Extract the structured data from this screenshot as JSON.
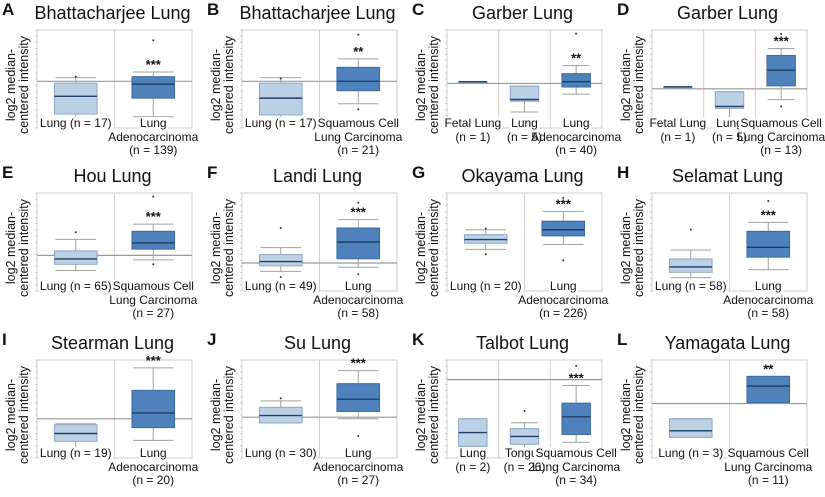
{
  "colors": {
    "normal_fill": "#bcd0e6",
    "normal_stroke": "#8aa6c4",
    "tumor_fill": "#4f81bd",
    "tumor_stroke": "#3d6a9e",
    "median": "#1f3f66",
    "whisker": "#a0a0a0",
    "zero_line": "#999999",
    "grid": "#dddddd"
  },
  "ylabel_line1": "log2 median-",
  "ylabel_line2": "centered intensity",
  "chart_data": [
    {
      "letter": "A",
      "title": "Bhattacharjee Lung",
      "type": "box",
      "ylim": [
        -5.0,
        5.5
      ],
      "groups": [
        {
          "label": [
            "Lung (n = 17)"
          ],
          "kind": "normal",
          "q1": -3.5,
          "median": -1.6,
          "q3": -0.2,
          "wlo": -4.4,
          "whi": 0.4,
          "outliers": [
            0.5,
            -4.8
          ]
        },
        {
          "label": [
            "Lung",
            "Adenocarcinoma",
            "(n = 139)"
          ],
          "kind": "tumor",
          "q1": -1.8,
          "median": -0.3,
          "q3": 0.5,
          "wlo": -3.8,
          "whi": 1.0,
          "outliers": [
            4.4,
            -4.3
          ],
          "sig": "***"
        }
      ]
    },
    {
      "letter": "B",
      "title": "Bhattacharjee Lung",
      "type": "box",
      "ylim": [
        -5.0,
        5.5
      ],
      "groups": [
        {
          "label": [
            "Lung (n = 17)"
          ],
          "kind": "normal",
          "q1": -3.6,
          "median": -1.8,
          "q3": -0.2,
          "wlo": -4.7,
          "whi": 0.4,
          "outliers": [
            0.3,
            -5.0
          ]
        },
        {
          "label": [
            "Squamous Cell",
            "Lung Carcinoma",
            "(n = 21)"
          ],
          "kind": "tumor",
          "q1": -1.0,
          "median": 0.0,
          "q3": 1.5,
          "wlo": -2.4,
          "whi": 2.4,
          "outliers": [
            5.0,
            -3.0
          ],
          "sig": "**"
        }
      ]
    },
    {
      "letter": "C",
      "title": "Garber Lung",
      "type": "box",
      "ylim": [
        -2.5,
        3.0
      ],
      "groups": [
        {
          "label": [
            "Fetal Lung",
            "(n = 1)"
          ],
          "kind": "normal",
          "q1": 0.1,
          "median": 0.1,
          "q3": 0.1,
          "wlo": 0.1,
          "whi": 0.1,
          "outliers": []
        },
        {
          "label": [
            "Lung",
            "(n = 5)"
          ],
          "kind": "normal",
          "q1": -1.0,
          "median": -0.9,
          "q3": -0.15,
          "wlo": -1.6,
          "whi": -0.15,
          "outliers": []
        },
        {
          "label": [
            "Lung",
            "Adenocarcinoma",
            "(n = 40)"
          ],
          "kind": "tumor",
          "q1": -0.2,
          "median": 0.1,
          "q3": 0.55,
          "wlo": -0.6,
          "whi": 1.0,
          "outliers": [
            2.8,
            -2.1
          ],
          "sig": "**"
        }
      ]
    },
    {
      "letter": "D",
      "title": "Garber Lung",
      "type": "box",
      "ylim": [
        -2.0,
        3.0
      ],
      "groups": [
        {
          "label": [
            "Fetal Lung",
            "(n = 1)"
          ],
          "kind": "normal",
          "q1": 0.1,
          "median": 0.1,
          "q3": 0.1,
          "wlo": 0.1,
          "whi": 0.1,
          "outliers": []
        },
        {
          "label": [
            "Lung",
            "(n = 5)"
          ],
          "kind": "normal",
          "q1": -1.0,
          "median": -0.9,
          "q3": -0.15,
          "wlo": -1.6,
          "whi": -0.15,
          "outliers": []
        },
        {
          "label": [
            "Squamous Cell",
            "Lung Carcinoma",
            "(n = 13)"
          ],
          "kind": "tumor",
          "q1": 0.15,
          "median": 0.95,
          "q3": 1.7,
          "wlo": -0.55,
          "whi": 2.05,
          "outliers": [
            2.8,
            -0.9
          ],
          "sig": "***"
        }
      ]
    },
    {
      "letter": "E",
      "title": "Hou Lung",
      "type": "box",
      "ylim": [
        -2.0,
        3.5
      ],
      "groups": [
        {
          "label": [
            "Lung (n = 65)"
          ],
          "kind": "normal",
          "q1": -0.5,
          "median": -0.2,
          "q3": 0.25,
          "wlo": -0.85,
          "whi": 0.9,
          "outliers": [
            1.3,
            -1.7
          ]
        },
        {
          "label": [
            "Squamous Cell",
            "Lung Carcinoma",
            "(n = 27)"
          ],
          "kind": "tumor",
          "q1": 0.35,
          "median": 0.7,
          "q3": 1.35,
          "wlo": -0.25,
          "whi": 1.75,
          "outliers": [
            3.3,
            -0.5
          ],
          "sig": "***"
        }
      ]
    },
    {
      "letter": "F",
      "title": "Landi Lung",
      "type": "box",
      "ylim": [
        -1.0,
        2.5
      ],
      "groups": [
        {
          "label": [
            "Lung (n = 49)"
          ],
          "kind": "normal",
          "q1": -0.1,
          "median": 0.05,
          "q3": 0.3,
          "wlo": -0.3,
          "whi": 0.55,
          "outliers": [
            1.25,
            -0.5
          ]
        },
        {
          "label": [
            "Lung",
            "Adenocarcinoma",
            "(n = 58)"
          ],
          "kind": "tumor",
          "q1": 0.15,
          "median": 0.75,
          "q3": 1.25,
          "wlo": -0.15,
          "whi": 1.55,
          "outliers": [
            2.15,
            -0.4
          ],
          "sig": "***"
        }
      ]
    },
    {
      "letter": "G",
      "title": "Okayama Lung",
      "type": "box",
      "ylim": [
        0.0,
        8.0
      ],
      "groups": [
        {
          "label": [
            "Lung (n = 20)"
          ],
          "kind": "normal",
          "q1": 3.9,
          "median": 4.2,
          "q3": 4.6,
          "wlo": 3.4,
          "whi": 5.0,
          "outliers": [
            5.1,
            3.0
          ]
        },
        {
          "label": [
            "Lung",
            "Adenocarcinoma",
            "(n = 226)"
          ],
          "kind": "tumor",
          "q1": 4.5,
          "median": 5.0,
          "q3": 5.7,
          "wlo": 3.8,
          "whi": 6.5,
          "outliers": [
            7.6,
            2.5
          ],
          "sig": "***"
        }
      ]
    },
    {
      "letter": "H",
      "title": "Selamat Lung",
      "type": "box",
      "ylim": [
        0.0,
        5.5
      ],
      "groups": [
        {
          "label": [
            "Lung (n = 58)"
          ],
          "kind": "normal",
          "q1": 1.05,
          "median": 1.35,
          "q3": 1.8,
          "wlo": 0.75,
          "whi": 2.3,
          "outliers": [
            3.45,
            0.15
          ]
        },
        {
          "label": [
            "Lung",
            "Adenocarcinoma",
            "(n = 58)"
          ],
          "kind": "tumor",
          "q1": 1.9,
          "median": 2.45,
          "q3": 3.35,
          "wlo": 1.2,
          "whi": 3.85,
          "outliers": [
            5.05,
            0.35
          ],
          "sig": "***"
        }
      ]
    },
    {
      "letter": "I",
      "title": "Stearman Lung",
      "type": "box",
      "ylim": [
        -2.0,
        3.0
      ],
      "groups": [
        {
          "label": [
            "Lung (n = 19)"
          ],
          "kind": "normal",
          "q1": -1.15,
          "median": -0.75,
          "q3": -0.3,
          "wlo": -1.6,
          "whi": -0.25,
          "outliers": [
            -1.7
          ]
        },
        {
          "label": [
            "Lung",
            "Adenocarcinoma",
            "(n = 20)"
          ],
          "kind": "tumor",
          "q1": -0.45,
          "median": 0.3,
          "q3": 1.45,
          "wlo": -1.1,
          "whi": 2.6,
          "outliers": [
            -1.5
          ],
          "sig": "***"
        }
      ]
    },
    {
      "letter": "J",
      "title": "Su Lung",
      "type": "box",
      "ylim": [
        -2.5,
        3.5
      ],
      "groups": [
        {
          "label": [
            "Lung (n = 30)"
          ],
          "kind": "normal",
          "q1": -0.35,
          "median": 0.1,
          "q3": 0.6,
          "wlo": -0.35,
          "whi": 1.0,
          "outliers": [
            1.15,
            -2.2
          ]
        },
        {
          "label": [
            "Lung",
            "Adenocarcinoma",
            "(n = 27)"
          ],
          "kind": "tumor",
          "q1": 0.35,
          "median": 1.1,
          "q3": 2.05,
          "wlo": -0.1,
          "whi": 2.85,
          "outliers": [
            -1.15
          ],
          "sig": "***"
        }
      ]
    },
    {
      "letter": "K",
      "title": "Talbot Lung",
      "type": "box",
      "ylim": [
        -2.0,
        0.5
      ],
      "groups": [
        {
          "label": [
            "Lung",
            "(n = 2)"
          ],
          "kind": "normal",
          "q1": -1.7,
          "median": -1.35,
          "q3": -1.0,
          "wlo": -1.7,
          "whi": -1.0,
          "outliers": []
        },
        {
          "label": [
            "Tongue",
            "(n = 26)"
          ],
          "kind": "normal",
          "q1": -1.65,
          "median": -1.45,
          "q3": -1.25,
          "wlo": -1.85,
          "whi": -1.1,
          "outliers": [
            -0.8,
            -1.9
          ]
        },
        {
          "label": [
            "Squamous Cell",
            "Lung Carcinoma",
            "(n = 34)"
          ],
          "kind": "tumor",
          "q1": -1.4,
          "median": -0.95,
          "q3": -0.6,
          "wlo": -1.6,
          "whi": -0.15,
          "outliers": [
            0.35,
            -1.85
          ],
          "sig": "***"
        }
      ]
    },
    {
      "letter": "L",
      "title": "Yamagata Lung",
      "type": "box",
      "ylim": [
        -2.5,
        2.0
      ],
      "groups": [
        {
          "label": [
            "Lung (n = 3)"
          ],
          "kind": "normal",
          "q1": -1.55,
          "median": -1.25,
          "q3": -0.7,
          "wlo": -1.55,
          "whi": -0.7,
          "outliers": []
        },
        {
          "label": [
            "Squamous Cell",
            "Lung Carcinoma",
            "(n = 11)"
          ],
          "kind": "tumor",
          "q1": 0.05,
          "median": 0.8,
          "q3": 1.25,
          "wlo": 0.05,
          "whi": 1.25,
          "outliers": [
            1.7,
            -2.3
          ],
          "sig": "**"
        }
      ]
    }
  ]
}
